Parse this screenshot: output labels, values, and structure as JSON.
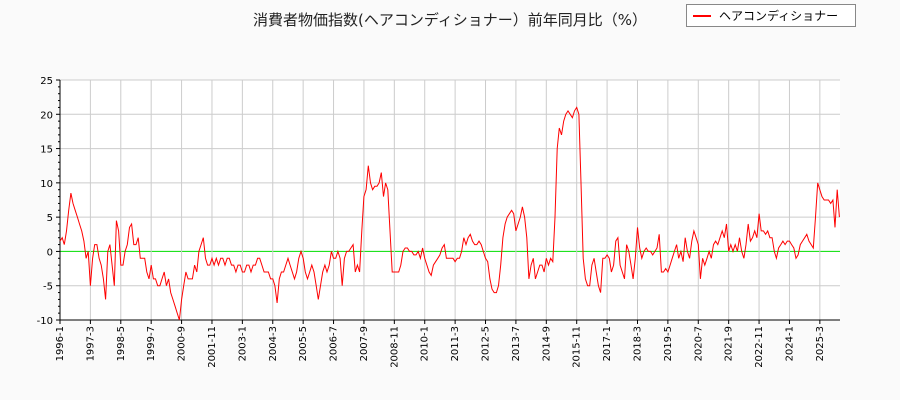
{
  "chart_data": {
    "type": "line",
    "title": "消費者物価指数(ヘアコンディショナー）前年同月比（%）",
    "xlabel": "",
    "ylabel": "",
    "ylim": [
      -10,
      25
    ],
    "yticks": [
      -10,
      -5,
      0,
      5,
      10,
      15,
      20,
      25
    ],
    "xticks": [
      "1996-1",
      "1997-3",
      "1998-5",
      "1999-7",
      "2000-9",
      "2001-11",
      "2003-1",
      "2004-3",
      "2005-5",
      "2006-7",
      "2007-9",
      "2008-11",
      "2010-1",
      "2011-3",
      "2012-5",
      "2013-7",
      "2014-9",
      "2015-11",
      "2017-1",
      "2018-3",
      "2019-5",
      "2020-7",
      "2021-9",
      "2022-11",
      "2024-1",
      "2025-3"
    ],
    "grid": true,
    "legend_placement": "top-right",
    "zero_line_color": "#00dd00",
    "series": [
      {
        "name": "ヘアコンディショナー",
        "color": "#ff0000",
        "monthly_values_by_year": {
          "1996": [
            1.5,
            2,
            1,
            3,
            6,
            8.5,
            7,
            6,
            5,
            4,
            3,
            1.5
          ],
          "1997": [
            -1,
            0,
            -5,
            -1,
            1,
            1,
            -1,
            -2,
            -4,
            -7,
            0,
            1
          ],
          "1998": [
            -2,
            -5,
            4.5,
            3,
            -2,
            -2,
            0,
            1,
            3.5,
            4,
            1,
            1
          ],
          "1999": [
            2,
            -1,
            -1,
            -1,
            -3,
            -4,
            -2,
            -4,
            -4,
            -5,
            -5,
            -4
          ],
          "2000": [
            -3,
            -5,
            -4,
            -6,
            -7,
            -8,
            -9,
            -10,
            -7,
            -5,
            -3,
            -4
          ],
          "2001": [
            -4,
            -4,
            -2,
            -3,
            0,
            1,
            2,
            -1,
            -2,
            -2,
            -1,
            -2
          ],
          "2002": [
            -1,
            -2,
            -1,
            -1,
            -2,
            -1,
            -1,
            -2,
            -2,
            -3,
            -2,
            -2
          ],
          "2003": [
            -3,
            -3,
            -2,
            -2,
            -3,
            -2,
            -2,
            -1,
            -1,
            -2,
            -3,
            -3
          ],
          "2004": [
            -3,
            -4,
            -4,
            -5,
            -7.5,
            -4,
            -3,
            -3,
            -2,
            -1,
            -2,
            -3
          ],
          "2005": [
            -4,
            -3,
            -1,
            0,
            -1,
            -3,
            -4,
            -3,
            -2,
            -3,
            -5,
            -7
          ],
          "2006": [
            -5,
            -3,
            -2,
            -3,
            -2,
            0,
            -1,
            -1,
            0,
            -1,
            -5,
            -1
          ],
          "2007": [
            0,
            0,
            0.5,
            1,
            -3,
            -2,
            -3,
            3,
            8,
            9,
            12.5,
            10
          ],
          "2008": [
            9,
            9.5,
            9.5,
            10,
            11.5,
            8,
            10,
            9,
            3,
            -3,
            -3,
            -3
          ],
          "2009": [
            -3,
            -2,
            0,
            0.5,
            0.5,
            0,
            0,
            -0.5,
            -0.5,
            0,
            -1,
            0.5
          ],
          "2010": [
            -1,
            -2,
            -3,
            -3.5,
            -2,
            -1.5,
            -1,
            -0.5,
            0.5,
            1,
            -1,
            -1
          ],
          "2011": [
            -1,
            -1,
            -1.5,
            -1,
            -1,
            0,
            2,
            1,
            2,
            2.5,
            1.5,
            1
          ],
          "2012": [
            1,
            1.5,
            1,
            0,
            -1,
            -1.5,
            -4,
            -5.5,
            -6,
            -6,
            -5,
            -2
          ],
          "2013": [
            2,
            4,
            5,
            5.5,
            6,
            5.5,
            3,
            4,
            5,
            6.5,
            5,
            2
          ],
          "2014": [
            -4,
            -2,
            -1,
            -4,
            -3,
            -2,
            -2,
            -3,
            -1,
            -2,
            -1,
            -1.5
          ],
          "2015": [
            5,
            15,
            18,
            17,
            19,
            20,
            20.5,
            20,
            19.5,
            20.5,
            21,
            20
          ],
          "2016": [
            10,
            -1,
            -4,
            -5,
            -5,
            -2,
            -1,
            -3,
            -5,
            -6,
            -1,
            -1
          ],
          "2017": [
            -0.5,
            -1,
            -3,
            -2,
            1.5,
            2,
            -2,
            -3,
            -4,
            1,
            0,
            -2
          ],
          "2018": [
            -4,
            -1,
            3.5,
            0.5,
            -1,
            0,
            0.5,
            0,
            0,
            -0.5,
            0,
            0.5
          ],
          "2019": [
            2.5,
            -3,
            -3,
            -2.5,
            -3,
            -2,
            -1,
            0,
            1,
            -1,
            0,
            -1.5
          ],
          "2020": [
            2,
            0,
            -1,
            1.5,
            3,
            2,
            1,
            -4,
            -1,
            -2,
            -1,
            0
          ],
          "2021": [
            -1,
            1,
            1.5,
            1,
            2,
            3,
            2,
            4,
            0,
            1,
            0,
            1
          ],
          "2022": [
            0,
            2,
            0,
            -1,
            1,
            4,
            1.5,
            2,
            3,
            2,
            5.5,
            3
          ],
          "2023": [
            3,
            2.5,
            3,
            2,
            2,
            0,
            -1,
            0.5,
            1,
            1.5,
            1,
            1.5
          ],
          "2024": [
            1.5,
            1,
            0.5,
            -1,
            -0.5,
            1,
            1.5,
            2,
            2.5,
            1.5,
            1,
            0.5
          ],
          "2025": [
            5,
            10,
            9,
            8,
            7.5,
            7.5,
            7.5,
            7,
            7.5,
            3.5,
            9,
            5
          ]
        }
      }
    ]
  }
}
